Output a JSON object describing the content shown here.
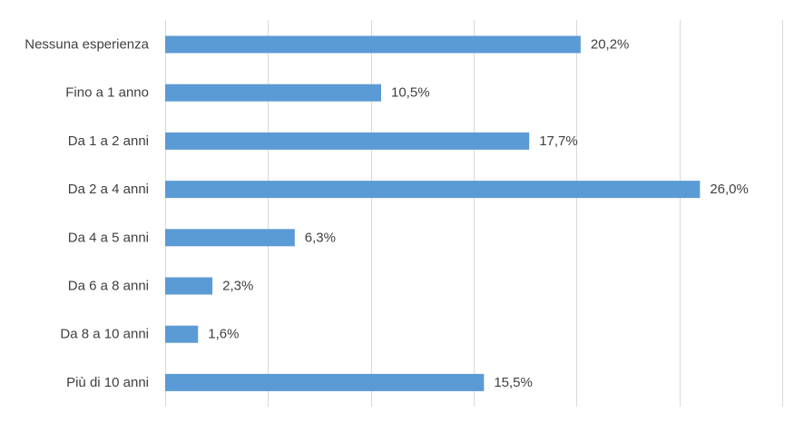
{
  "chart_data": {
    "type": "bar",
    "orientation": "horizontal",
    "categories": [
      "Nessuna esperienza",
      "Fino a 1 anno",
      "Da 1 a 2 anni",
      "Da 2 a 4 anni",
      "Da 4 a 5 anni",
      "Da 6 a 8 anni",
      "Da 8 a 10 anni",
      "Più di 10 anni"
    ],
    "values": [
      20.2,
      10.5,
      17.7,
      26.0,
      6.3,
      2.3,
      1.6,
      15.5
    ],
    "value_labels": [
      "20,2%",
      "10,5%",
      "17,7%",
      "26,0%",
      "6,3%",
      "2,3%",
      "1,6%",
      "15,5%"
    ],
    "xlim": [
      0,
      30
    ],
    "grid": true,
    "legend": "none",
    "bar_color": "#5b9bd5",
    "grid_color": "#d9d9d9",
    "text_color": "#404040"
  }
}
